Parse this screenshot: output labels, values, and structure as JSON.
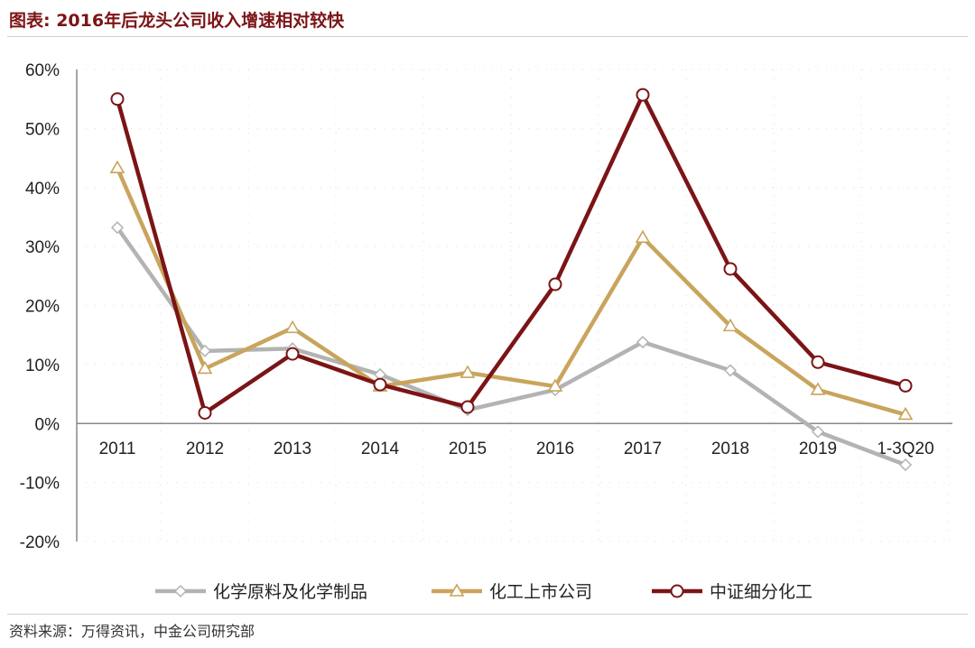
{
  "title": "图表: 2016年后龙头公司收入增速相对较快",
  "source": "资料来源：万得资讯，中金公司研究部",
  "chart_data": {
    "type": "line",
    "title": "图表: 2016年后龙头公司收入增速相对较快",
    "xlabel": "",
    "ylabel": "",
    "ylim": [
      -20,
      60
    ],
    "yticks": [
      -20,
      -10,
      0,
      10,
      20,
      30,
      40,
      50,
      60
    ],
    "ytick_labels": [
      "-20%",
      "-10%",
      "0%",
      "10%",
      "20%",
      "30%",
      "40%",
      "50%",
      "60%"
    ],
    "grid": true,
    "legend_position": "bottom",
    "categories": [
      "2011",
      "2012",
      "2013",
      "2014",
      "2015",
      "2016",
      "2017",
      "2018",
      "2019",
      "1-3Q20"
    ],
    "series": [
      {
        "name": "化学原料及化学制品",
        "color": "#b3b3b3",
        "marker": "diamond",
        "values": [
          33.2,
          12.3,
          12.7,
          8.3,
          2.3,
          5.7,
          13.8,
          9.0,
          -1.4,
          -7.0
        ]
      },
      {
        "name": "化工上市公司",
        "color": "#c9a45c",
        "marker": "triangle",
        "values": [
          43.3,
          9.3,
          16.2,
          6.3,
          8.6,
          6.3,
          31.5,
          16.5,
          5.7,
          1.5
        ]
      },
      {
        "name": "中证细分化工",
        "color": "#7b1416",
        "marker": "circle",
        "values": [
          55.0,
          1.8,
          11.8,
          6.6,
          2.8,
          23.6,
          55.7,
          26.2,
          10.4,
          6.4
        ]
      }
    ]
  }
}
